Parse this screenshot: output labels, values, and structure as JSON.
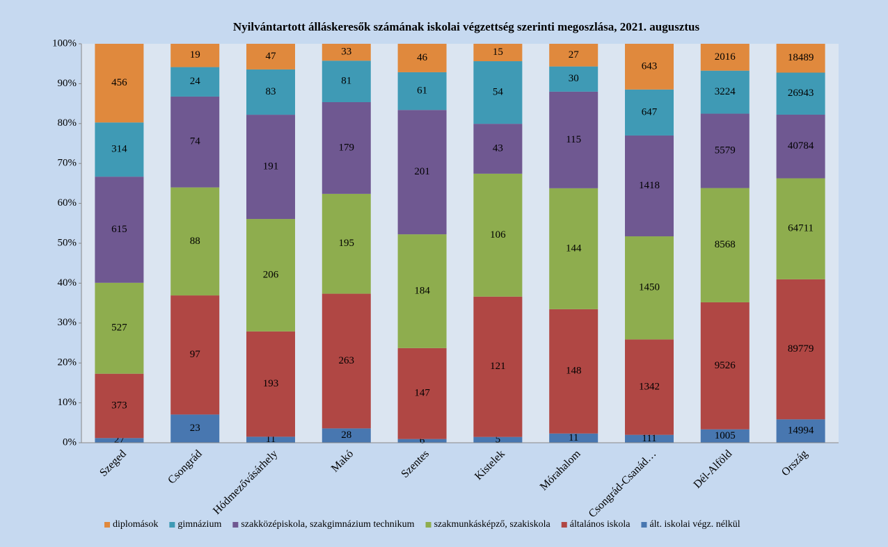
{
  "chart_data": {
    "type": "stacked_percent_bar",
    "title": "Nyilvántartott álláskeresők számának iskolai végzettség szerinti megoszlása, 2021. augusztus",
    "categories": [
      "Szeged",
      "Csongrád",
      "Hódmezővásárhely",
      "Makó",
      "Szentes",
      "Kistelek",
      "Mórahalom",
      "Csongrád-Csanád…",
      "Dél-Alföld",
      "Ország"
    ],
    "series": [
      {
        "name": "diplomások",
        "color": "#e0893d",
        "values": [
          456,
          19,
          47,
          33,
          46,
          15,
          27,
          643,
          2016,
          18489
        ]
      },
      {
        "name": "gimnázium",
        "color": "#3f9ab5",
        "values": [
          314,
          24,
          83,
          81,
          61,
          54,
          30,
          647,
          3224,
          26943
        ]
      },
      {
        "name": "szakközépiskola, szakgimnázium technikum",
        "color": "#6f5891",
        "values": [
          615,
          74,
          191,
          179,
          201,
          43,
          115,
          1418,
          5579,
          40784
        ]
      },
      {
        "name": "szakmunkásképző, szakiskola",
        "color": "#8ead4e",
        "values": [
          527,
          88,
          206,
          195,
          184,
          106,
          144,
          1450,
          8568,
          64711
        ]
      },
      {
        "name": "általános iskola",
        "color": "#b04744",
        "values": [
          373,
          97,
          193,
          263,
          147,
          121,
          148,
          1342,
          9526,
          89779
        ]
      },
      {
        "name": "ált. iskolai végz. nélkül",
        "color": "#4877b0",
        "values": [
          27,
          23,
          11,
          28,
          6,
          5,
          11,
          111,
          1005,
          14994
        ]
      }
    ],
    "ylim": [
      0,
      100
    ],
    "yticks": [
      {
        "value": 0,
        "label": "0%"
      },
      {
        "value": 10,
        "label": "10%"
      },
      {
        "value": 20,
        "label": "20%"
      },
      {
        "value": 30,
        "label": "30%"
      },
      {
        "value": 40,
        "label": "40%"
      },
      {
        "value": 50,
        "label": "50%"
      },
      {
        "value": 60,
        "label": "60%"
      },
      {
        "value": 70,
        "label": "70%"
      },
      {
        "value": 80,
        "label": "80%"
      },
      {
        "value": 90,
        "label": "90%"
      },
      {
        "value": 100,
        "label": "100%"
      }
    ],
    "legend": "bottom"
  }
}
